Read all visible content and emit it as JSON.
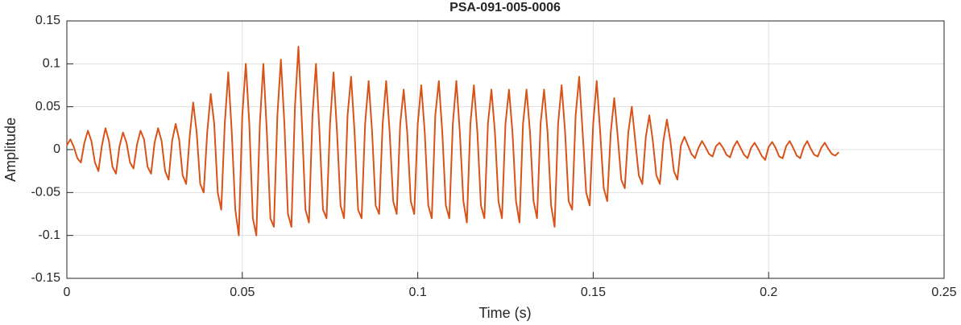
{
  "chart_data": {
    "type": "line",
    "title": "PSA-091-005-0006",
    "xlabel": "Time (s)",
    "ylabel": "Amplitude",
    "xlim": [
      0,
      0.25
    ],
    "xticks": [
      0,
      0.05,
      0.1,
      0.15,
      0.2,
      0.25
    ],
    "ylim": [
      -0.15,
      0.15
    ],
    "yticks": [
      -0.15,
      -0.1,
      -0.05,
      0,
      0.05,
      0.1,
      0.15
    ],
    "grid": true,
    "x": [
      0,
      0.001,
      0.002,
      0.003,
      0.004,
      0.005,
      0.006,
      0.007,
      0.008,
      0.009,
      0.01,
      0.011,
      0.012,
      0.013,
      0.014,
      0.015,
      0.016,
      0.017,
      0.018,
      0.019,
      0.02,
      0.021,
      0.022,
      0.023,
      0.024,
      0.025,
      0.026,
      0.027,
      0.028,
      0.029,
      0.03,
      0.031,
      0.032,
      0.033,
      0.034,
      0.035,
      0.036,
      0.037,
      0.038,
      0.039,
      0.04,
      0.041,
      0.042,
      0.043,
      0.044,
      0.045,
      0.046,
      0.047,
      0.048,
      0.049,
      0.05,
      0.051,
      0.052,
      0.053,
      0.054,
      0.055,
      0.056,
      0.057,
      0.058,
      0.059,
      0.06,
      0.061,
      0.062,
      0.063,
      0.064,
      0.065,
      0.066,
      0.067,
      0.068,
      0.069,
      0.07,
      0.071,
      0.072,
      0.073,
      0.074,
      0.075,
      0.076,
      0.077,
      0.078,
      0.079,
      0.08,
      0.081,
      0.082,
      0.083,
      0.084,
      0.085,
      0.086,
      0.087,
      0.088,
      0.089,
      0.09,
      0.091,
      0.092,
      0.093,
      0.094,
      0.095,
      0.096,
      0.097,
      0.098,
      0.099,
      0.1,
      0.101,
      0.102,
      0.103,
      0.104,
      0.105,
      0.106,
      0.107,
      0.108,
      0.109,
      0.11,
      0.111,
      0.112,
      0.113,
      0.114,
      0.115,
      0.116,
      0.117,
      0.118,
      0.119,
      0.12,
      0.121,
      0.122,
      0.123,
      0.124,
      0.125,
      0.126,
      0.127,
      0.128,
      0.129,
      0.13,
      0.131,
      0.132,
      0.133,
      0.134,
      0.135,
      0.136,
      0.137,
      0.138,
      0.139,
      0.14,
      0.141,
      0.142,
      0.143,
      0.144,
      0.145,
      0.146,
      0.147,
      0.148,
      0.149,
      0.15,
      0.151,
      0.152,
      0.153,
      0.154,
      0.155,
      0.156,
      0.157,
      0.158,
      0.159,
      0.16,
      0.161,
      0.162,
      0.163,
      0.164,
      0.165,
      0.166,
      0.167,
      0.168,
      0.169,
      0.17,
      0.171,
      0.172,
      0.173,
      0.174,
      0.175,
      0.176,
      0.177,
      0.178,
      0.179,
      0.18,
      0.181,
      0.182,
      0.183,
      0.184,
      0.185,
      0.186,
      0.187,
      0.188,
      0.189,
      0.19,
      0.191,
      0.192,
      0.193,
      0.194,
      0.195,
      0.196,
      0.197,
      0.198,
      0.199,
      0.2,
      0.201,
      0.202,
      0.203,
      0.204,
      0.205,
      0.206,
      0.207,
      0.208,
      0.209,
      0.21,
      0.211,
      0.212,
      0.213,
      0.214,
      0.215,
      0.216,
      0.217,
      0.218,
      0.219,
      0.22
    ],
    "series": [
      {
        "name": "Amplitude",
        "color": "#d95319",
        "values": [
          0.005,
          0.012,
          0.003,
          -0.01,
          -0.015,
          0.008,
          0.022,
          0.01,
          -0.015,
          -0.025,
          0.005,
          0.025,
          0.01,
          -0.02,
          -0.028,
          0.004,
          0.02,
          0.008,
          -0.015,
          -0.022,
          0.006,
          0.022,
          0.012,
          -0.02,
          -0.028,
          0.008,
          0.025,
          0.01,
          -0.025,
          -0.035,
          0.01,
          0.03,
          0.012,
          -0.03,
          -0.04,
          0.015,
          0.055,
          0.02,
          -0.04,
          -0.05,
          0.02,
          0.065,
          0.03,
          -0.05,
          -0.07,
          0.03,
          0.09,
          0.02,
          -0.07,
          -0.1,
          0.04,
          0.1,
          0.03,
          -0.08,
          -0.1,
          0.03,
          0.1,
          0.02,
          -0.08,
          -0.09,
          0.04,
          0.105,
          0.03,
          -0.075,
          -0.09,
          0.05,
          0.12,
          0.03,
          -0.07,
          -0.085,
          0.04,
          0.1,
          0.02,
          -0.07,
          -0.08,
          0.03,
          0.09,
          0.02,
          -0.065,
          -0.08,
          0.04,
          0.085,
          0.02,
          -0.07,
          -0.08,
          0.03,
          0.08,
          0.02,
          -0.065,
          -0.075,
          0.03,
          0.08,
          0.02,
          -0.06,
          -0.075,
          0.03,
          0.07,
          0.02,
          -0.06,
          -0.075,
          0.03,
          0.075,
          0.02,
          -0.065,
          -0.08,
          0.04,
          0.08,
          0.02,
          -0.065,
          -0.08,
          0.03,
          0.08,
          0.02,
          -0.06,
          -0.085,
          0.03,
          0.075,
          0.02,
          -0.065,
          -0.08,
          0.03,
          0.07,
          0.02,
          -0.06,
          -0.08,
          0.03,
          0.07,
          0.02,
          -0.06,
          -0.085,
          0.03,
          0.07,
          0.02,
          -0.06,
          -0.08,
          0.03,
          0.07,
          0.02,
          -0.065,
          -0.09,
          0.03,
          0.075,
          0.02,
          -0.06,
          -0.07,
          0.04,
          0.085,
          0.02,
          -0.05,
          -0.065,
          0.03,
          0.08,
          0.02,
          -0.045,
          -0.06,
          0.02,
          0.06,
          0.015,
          -0.035,
          -0.045,
          0.02,
          0.05,
          0.01,
          -0.03,
          -0.04,
          0.015,
          0.04,
          0.01,
          -0.03,
          -0.04,
          0.01,
          0.035,
          0.01,
          -0.025,
          -0.035,
          0.005,
          0.015,
          0.005,
          -0.005,
          -0.01,
          0.002,
          0.01,
          0.003,
          -0.005,
          -0.008,
          0.004,
          0.008,
          0.002,
          -0.006,
          -0.009,
          0.003,
          0.01,
          0.002,
          -0.006,
          -0.01,
          0.002,
          0.008,
          0.001,
          -0.007,
          -0.012,
          0.003,
          0.009,
          0.002,
          -0.008,
          -0.01,
          0.004,
          0.01,
          0.002,
          -0.007,
          -0.01,
          0.003,
          0.01,
          0.001,
          -0.006,
          -0.008,
          0.002,
          0.008,
          0.001,
          -0.005,
          -0.007,
          -0.003
        ]
      }
    ]
  }
}
